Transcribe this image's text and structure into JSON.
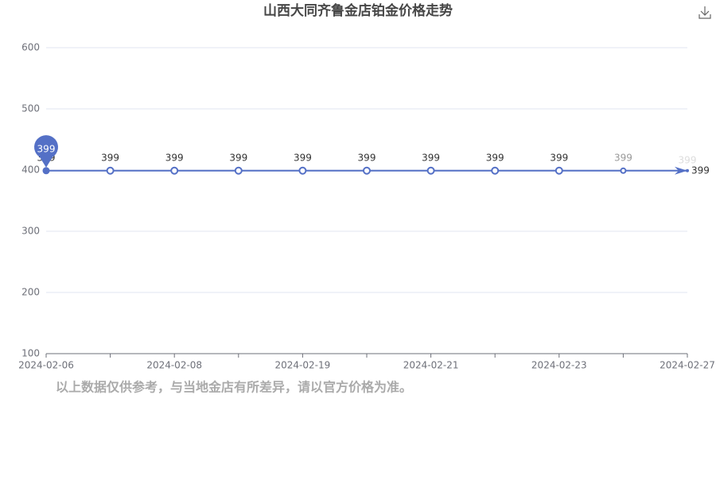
{
  "chart_data": {
    "type": "line",
    "title": "山西大同齐鲁金店铂金价格走势",
    "categories": [
      "2024-02-06",
      null,
      "2024-02-08",
      null,
      "2024-02-19",
      null,
      "2024-02-21",
      null,
      "2024-02-23",
      null,
      "2024-02-27"
    ],
    "values": [
      399,
      399,
      399,
      399,
      399,
      399,
      399,
      399,
      399,
      399,
      399
    ],
    "color": "#5470c6",
    "ylim": [
      100,
      600
    ],
    "yticks": [
      100,
      200,
      300,
      400,
      500,
      600
    ],
    "grid": true
  },
  "footnote": "以上数据仅供参考，与当地金店有所差异，请以官方价格为准。"
}
